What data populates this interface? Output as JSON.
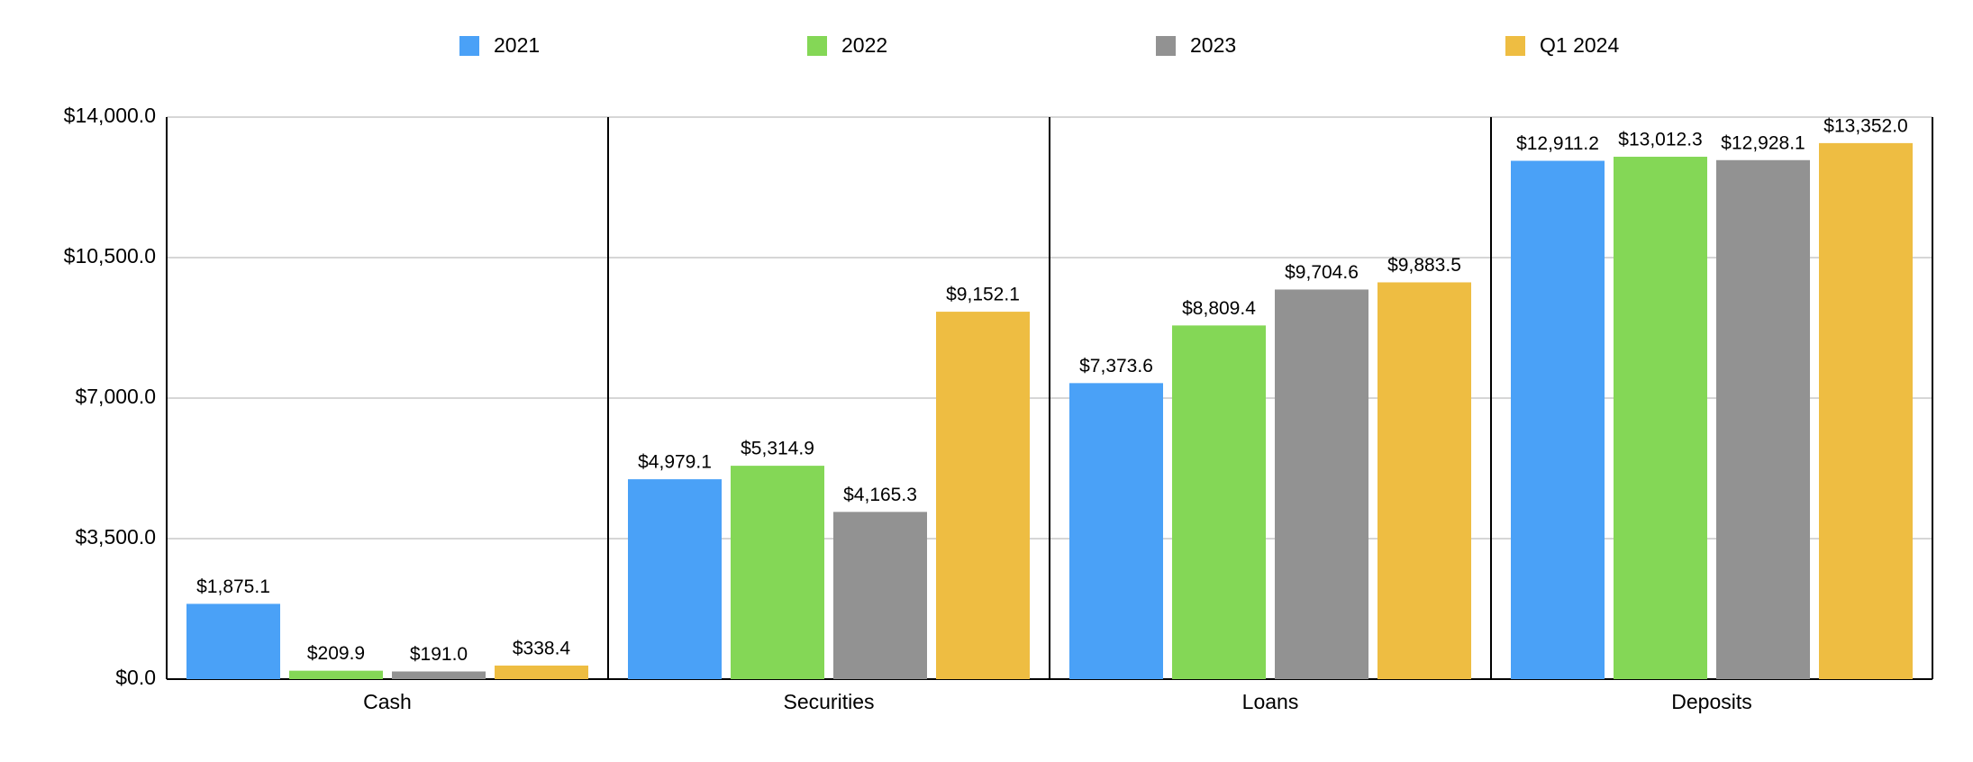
{
  "chart_data": {
    "type": "bar",
    "categories": [
      "Cash",
      "Securities",
      "Loans",
      "Deposits"
    ],
    "series": [
      {
        "name": "2021",
        "color": "#4aa1f7",
        "values": [
          1875.1,
          4979.1,
          7373.6,
          12911.2
        ],
        "value_labels": [
          "$1,875.1",
          "$4,979.1",
          "$7,373.6",
          "$12,911.2"
        ]
      },
      {
        "name": "2022",
        "color": "#84d756",
        "values": [
          209.9,
          5314.9,
          8809.4,
          13012.3
        ],
        "value_labels": [
          "$209.9",
          "$5,314.9",
          "$8,809.4",
          "$13,012.3"
        ]
      },
      {
        "name": "2023",
        "color": "#929292",
        "values": [
          191.0,
          4165.3,
          9704.6,
          12928.1
        ],
        "value_labels": [
          "$191.0",
          "$4,165.3",
          "$9,704.6",
          "$12,928.1"
        ]
      },
      {
        "name": "Q1 2024",
        "color": "#eebd42",
        "values": [
          338.4,
          9152.1,
          9883.5,
          13352.0
        ],
        "value_labels": [
          "$338.4",
          "$9,152.1",
          "$9,883.5",
          "$13,352.0"
        ]
      }
    ],
    "ylim": [
      0,
      14000
    ],
    "yticks": [
      {
        "value": 0,
        "label": "$0.0"
      },
      {
        "value": 3500,
        "label": "$3,500.0"
      },
      {
        "value": 7000,
        "label": "$7,000.0"
      },
      {
        "value": 10500,
        "label": "$10,500.0"
      },
      {
        "value": 14000,
        "label": "$14,000.0"
      }
    ],
    "grid": true,
    "legend": "top"
  }
}
